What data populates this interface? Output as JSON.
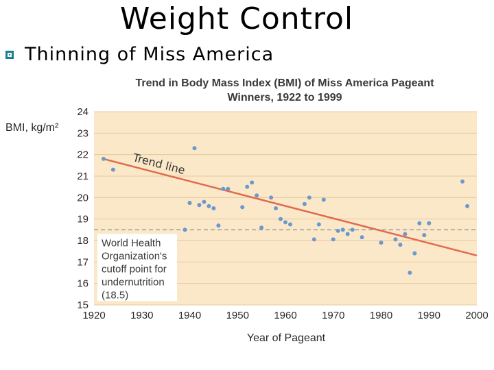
{
  "slide": {
    "title": "Weight Control",
    "bullet": "Thinning of Miss America"
  },
  "colors": {
    "plot_bg": "#fbe8c8",
    "grid": "#e8c89a",
    "dots": "#6a98cf",
    "trend": "#e06a4e",
    "cutoff": "#9a9a9a",
    "bullet": "#1a7f8e"
  },
  "chart_data": {
    "type": "scatter",
    "title": "Trend in Body Mass Index (BMI) of Miss America Pageant Winners, 1922 to 1999",
    "title_lines": [
      "Trend in Body Mass Index (BMI) of Miss America Pageant",
      "Winners, 1922 to 1999"
    ],
    "xlabel": "Year of Pageant",
    "ylabel": "BMI, kg/m²",
    "xlim": [
      1920,
      2000
    ],
    "ylim": [
      15,
      24
    ],
    "xticks": [
      1920,
      1930,
      1940,
      1950,
      1960,
      1970,
      1980,
      1990,
      2000
    ],
    "yticks": [
      15,
      16,
      17,
      18,
      19,
      20,
      21,
      22,
      23,
      24
    ],
    "grid": true,
    "points": [
      {
        "x": 1922,
        "y": 21.8
      },
      {
        "x": 1924,
        "y": 21.3
      },
      {
        "x": 1939,
        "y": 18.5
      },
      {
        "x": 1940,
        "y": 19.75
      },
      {
        "x": 1941,
        "y": 22.3
      },
      {
        "x": 1942,
        "y": 19.65
      },
      {
        "x": 1943,
        "y": 19.8
      },
      {
        "x": 1944,
        "y": 19.6
      },
      {
        "x": 1945,
        "y": 19.5
      },
      {
        "x": 1946,
        "y": 18.7
      },
      {
        "x": 1947,
        "y": 20.4
      },
      {
        "x": 1948,
        "y": 20.4
      },
      {
        "x": 1951,
        "y": 19.55
      },
      {
        "x": 1952,
        "y": 20.5
      },
      {
        "x": 1953,
        "y": 20.7
      },
      {
        "x": 1954,
        "y": 20.1
      },
      {
        "x": 1955,
        "y": 18.6
      },
      {
        "x": 1957,
        "y": 20.0
      },
      {
        "x": 1958,
        "y": 19.5
      },
      {
        "x": 1959,
        "y": 19.0
      },
      {
        "x": 1960,
        "y": 18.85
      },
      {
        "x": 1961,
        "y": 18.75
      },
      {
        "x": 1964,
        "y": 19.7
      },
      {
        "x": 1965,
        "y": 20.0
      },
      {
        "x": 1966,
        "y": 18.05
      },
      {
        "x": 1967,
        "y": 18.75
      },
      {
        "x": 1968,
        "y": 19.9
      },
      {
        "x": 1970,
        "y": 18.05
      },
      {
        "x": 1971,
        "y": 18.45
      },
      {
        "x": 1972,
        "y": 18.5
      },
      {
        "x": 1973,
        "y": 18.3
      },
      {
        "x": 1974,
        "y": 18.5
      },
      {
        "x": 1976,
        "y": 18.15
      },
      {
        "x": 1980,
        "y": 17.9
      },
      {
        "x": 1983,
        "y": 18.05
      },
      {
        "x": 1984,
        "y": 17.8
      },
      {
        "x": 1985,
        "y": 18.3
      },
      {
        "x": 1986,
        "y": 16.5
      },
      {
        "x": 1987,
        "y": 17.4
      },
      {
        "x": 1988,
        "y": 18.8
      },
      {
        "x": 1989,
        "y": 18.25
      },
      {
        "x": 1990,
        "y": 18.8
      },
      {
        "x": 1997,
        "y": 20.75
      },
      {
        "x": 1998,
        "y": 19.6
      }
    ],
    "trend_line": {
      "label": "Trend line",
      "x": [
        1922,
        2000
      ],
      "y": [
        21.8,
        17.3
      ]
    },
    "cutoff": {
      "value": 18.5,
      "note_lines": [
        "World Health",
        "Organization's",
        "cutoff point for",
        "undernutrition",
        "(18.5)"
      ]
    }
  }
}
